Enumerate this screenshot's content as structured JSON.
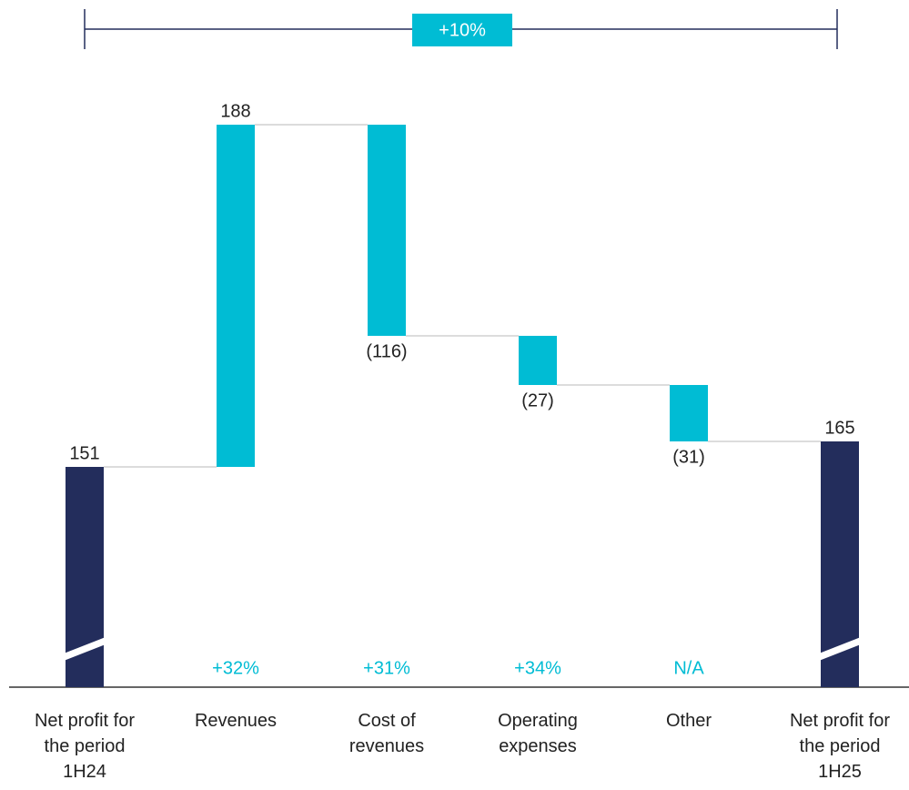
{
  "chart_data": {
    "type": "waterfall",
    "categories": [
      "Net profit for the period 1H24",
      "Revenues",
      "Cost of revenues",
      "Operating expenses",
      "Other",
      "Net profit for the period 1H25"
    ],
    "values": [
      151,
      188,
      -116,
      -27,
      -31,
      165
    ],
    "value_labels": [
      "151",
      "188",
      "(116)",
      "(27)",
      "(31)",
      "165"
    ],
    "colors": [
      "#232d5c",
      "#00bcd4",
      "#00bcd4",
      "#00bcd4",
      "#00bcd4",
      "#232d5c"
    ],
    "changes": [
      "+32%",
      "+31%",
      "+34%",
      "N/A"
    ],
    "total_change": "+10%",
    "ylim": [
      30,
      365
    ]
  }
}
